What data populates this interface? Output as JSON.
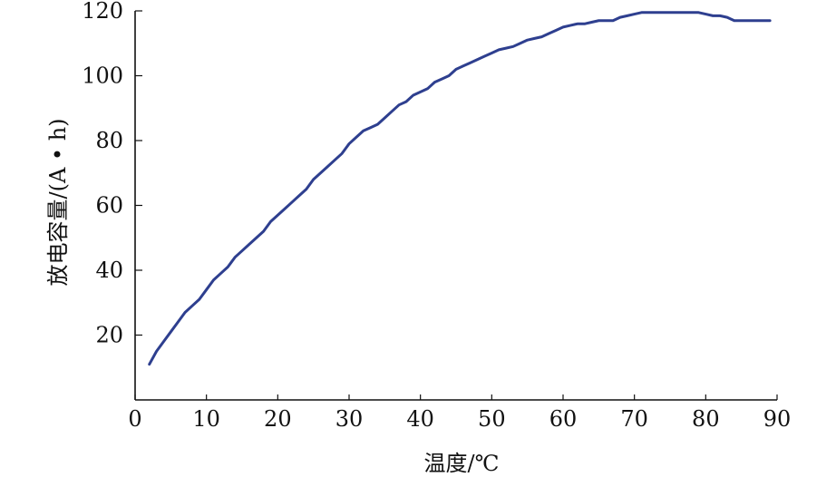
{
  "chart_data": {
    "type": "line",
    "title": "",
    "xlabel": "温度/℃",
    "ylabel": "放电容量/(A • h)",
    "xlim": [
      0,
      90
    ],
    "ylim": [
      0,
      120
    ],
    "x_ticks": [
      0,
      10,
      20,
      30,
      40,
      50,
      60,
      70,
      80,
      90
    ],
    "y_ticks": [
      20,
      40,
      60,
      80,
      100,
      120
    ],
    "x_tick_labels": [
      "0",
      "10",
      "20",
      "30",
      "40",
      "50",
      "60",
      "70",
      "80",
      "90"
    ],
    "y_tick_labels": [
      "20",
      "40",
      "60",
      "80",
      "100",
      "120"
    ],
    "grid": false,
    "legend": "none",
    "colors": {
      "line": "#2e3f8f",
      "axis": "#111111"
    },
    "series": [
      {
        "name": "",
        "x": [
          2,
          3,
          4,
          5,
          6,
          7,
          8,
          9,
          10,
          11,
          12,
          13,
          14,
          15,
          16,
          17,
          18,
          19,
          20,
          21,
          22,
          23,
          24,
          25,
          26,
          27,
          28,
          29,
          30,
          31,
          32,
          33,
          34,
          35,
          36,
          37,
          38,
          39,
          40,
          41,
          42,
          43,
          44,
          45,
          46,
          47,
          48,
          49,
          50,
          51,
          52,
          53,
          54,
          55,
          56,
          57,
          58,
          59,
          60,
          61,
          62,
          63,
          64,
          65,
          66,
          67,
          68,
          69,
          70,
          71,
          72,
          73,
          74,
          75,
          76,
          77,
          78,
          79,
          80,
          81,
          82,
          83,
          84,
          85,
          86,
          87,
          88,
          89
        ],
        "values": [
          11,
          15,
          18,
          21,
          24,
          27,
          29,
          31,
          34,
          37,
          39,
          41,
          44,
          46,
          48,
          50,
          52,
          55,
          57,
          59,
          61,
          63,
          65,
          68,
          70,
          72,
          74,
          76,
          79,
          81,
          83,
          84,
          85,
          87,
          89,
          91,
          92,
          94,
          95,
          96,
          98,
          99,
          100,
          102,
          103,
          104,
          105,
          106,
          107,
          108,
          108.5,
          109,
          110,
          111,
          111.5,
          112,
          113,
          114,
          115,
          115.5,
          116,
          116,
          116.5,
          117,
          117,
          117,
          118,
          118.5,
          119,
          119.5,
          119.5,
          119.5,
          119.5,
          119.5,
          119.5,
          119.5,
          119.5,
          119.5,
          119,
          118.5,
          118.5,
          118,
          117,
          117,
          117,
          117,
          117,
          117
        ]
      }
    ]
  }
}
